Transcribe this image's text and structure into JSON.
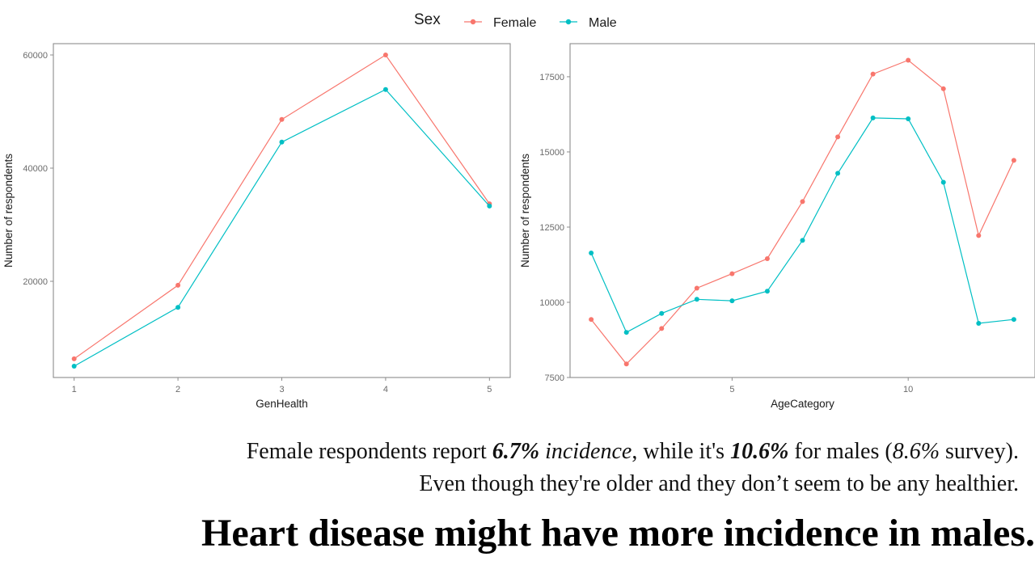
{
  "legend": {
    "title": "Sex",
    "entries": [
      {
        "label": "Female",
        "color": "#F8766D"
      },
      {
        "label": "Male",
        "color": "#00BFC4"
      }
    ]
  },
  "chart_data": [
    {
      "type": "line",
      "xlabel": "GenHealth",
      "ylabel": "Number of respondents",
      "x": [
        1,
        2,
        3,
        4,
        5
      ],
      "xlim": [
        0.8,
        5.2
      ],
      "ylim": [
        3000,
        62000
      ],
      "xticks": [
        1,
        2,
        3,
        4,
        5
      ],
      "yticks": [
        20000,
        40000,
        60000
      ],
      "grid": false,
      "series": [
        {
          "name": "Female",
          "color": "#F8766D",
          "values": [
            6300,
            19300,
            48600,
            60000,
            33700
          ]
        },
        {
          "name": "Male",
          "color": "#00BFC4",
          "values": [
            5000,
            15400,
            44600,
            53900,
            33300
          ]
        }
      ]
    },
    {
      "type": "line",
      "xlabel": "AgeCategory",
      "ylabel": "Number of respondents",
      "x": [
        1,
        2,
        3,
        4,
        5,
        6,
        7,
        8,
        9,
        10,
        11,
        12,
        13
      ],
      "xlim": [
        0.4,
        13.6
      ],
      "ylim": [
        7500,
        18600
      ],
      "xticks": [
        5,
        10
      ],
      "yticks": [
        7500,
        10000,
        12500,
        15000,
        17500
      ],
      "grid": false,
      "series": [
        {
          "name": "Female",
          "color": "#F8766D",
          "values": [
            9430,
            7950,
            9130,
            10470,
            10950,
            11450,
            13350,
            15500,
            17590,
            18050,
            17100,
            12220,
            14720
          ]
        },
        {
          "name": "Male",
          "color": "#00BFC4",
          "values": [
            11640,
            9000,
            9630,
            10100,
            10050,
            10370,
            12060,
            14290,
            16130,
            16100,
            13990,
            9300,
            9430
          ]
        }
      ]
    }
  ],
  "caption": {
    "line1": {
      "t1": "Female respondents report ",
      "b1": "6.7%",
      "i1": " incidence",
      "t2": ", while it's ",
      "b2": "10.6%",
      "t3": " for males (",
      "i2": "8.6%",
      "t4": " survey)."
    },
    "line2": "Even though they're older and they don’t seem to be any healthier."
  },
  "headline": "Heart disease might have more incidence in males."
}
